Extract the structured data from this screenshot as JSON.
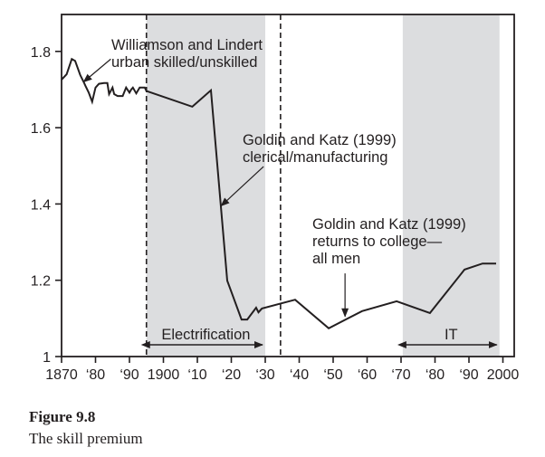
{
  "chart_data": {
    "type": "line",
    "title": "",
    "xlabel": "",
    "ylabel": "",
    "xlim": [
      1870,
      2003
    ],
    "ylim": [
      1.0,
      1.9
    ],
    "grid": false,
    "x_ticks": [
      1870,
      1880,
      1890,
      1900,
      1910,
      1920,
      1930,
      1940,
      1950,
      1960,
      1970,
      1980,
      1990,
      2000
    ],
    "x_tick_labels": [
      "1870",
      "‘80",
      "‘90",
      "1900",
      "‘10",
      "‘20",
      "‘30",
      "‘40",
      "‘50",
      "‘60",
      "‘70",
      "‘80",
      "‘90",
      "2000"
    ],
    "y_ticks": [
      1.0,
      1.2,
      1.4,
      1.6,
      1.8
    ],
    "y_tick_labels": [
      "1",
      "1.2",
      "1.4",
      "1.6",
      "1.8"
    ],
    "series": [
      {
        "name": "Skill premium",
        "x": [
          1870,
          1871.5,
          1873,
          1874,
          1875.5,
          1876.5,
          1877,
          1878,
          1879,
          1880,
          1881,
          1882.5,
          1883.5,
          1884,
          1885,
          1885.5,
          1886.5,
          1888,
          1889,
          1890,
          1890.5,
          1891,
          1892,
          1893,
          1894.5,
          1895,
          1908.5,
          1914,
          1918.8,
          1923,
          1924.7,
          1927.3,
          1928,
          1929,
          1938.8,
          1948.7,
          1958.5,
          1968.7,
          1978.5,
          1988.7,
          1994,
          1998
        ],
        "values": [
          1.726,
          1.74,
          1.78,
          1.775,
          1.738,
          1.72,
          1.71,
          1.692,
          1.668,
          1.705,
          1.715,
          1.717,
          1.717,
          1.688,
          1.705,
          1.688,
          1.683,
          1.683,
          1.705,
          1.692,
          1.7,
          1.705,
          1.69,
          1.705,
          1.705,
          1.696,
          1.655,
          1.698,
          1.199,
          1.097,
          1.097,
          1.128,
          1.116,
          1.126,
          1.149,
          1.074,
          1.119,
          1.145,
          1.114,
          1.228,
          1.244,
          1.244
        ]
      }
    ],
    "shaded_periods": [
      {
        "label": "Electrification",
        "start": 1895,
        "end": 1930
      },
      {
        "label": "IT",
        "start": 1970.5,
        "end": 1999
      }
    ],
    "dashed_lines": [
      1895,
      1934.5
    ],
    "annotations": [
      {
        "lines": [
          "Williamson and Lindert",
          "urban skilled/unskilled"
        ],
        "arrow_from": [
          1884.5,
          1.78
        ],
        "arrow_to": [
          1876.5,
          1.72
        ]
      },
      {
        "lines": [
          "Goldin and Katz (1999)",
          "clerical/manufacturing"
        ],
        "arrow_from": [
          1929.5,
          1.498
        ],
        "arrow_to": [
          1917,
          1.395
        ]
      },
      {
        "lines": [
          "Goldin and Katz (1999)",
          "returns to college—",
          "all men"
        ],
        "arrow_from": [
          1953.5,
          1.218
        ],
        "arrow_to": [
          1953.5,
          1.105
        ]
      }
    ]
  },
  "caption": {
    "figure_label": "Figure 9.8",
    "text": "The skill premium"
  }
}
